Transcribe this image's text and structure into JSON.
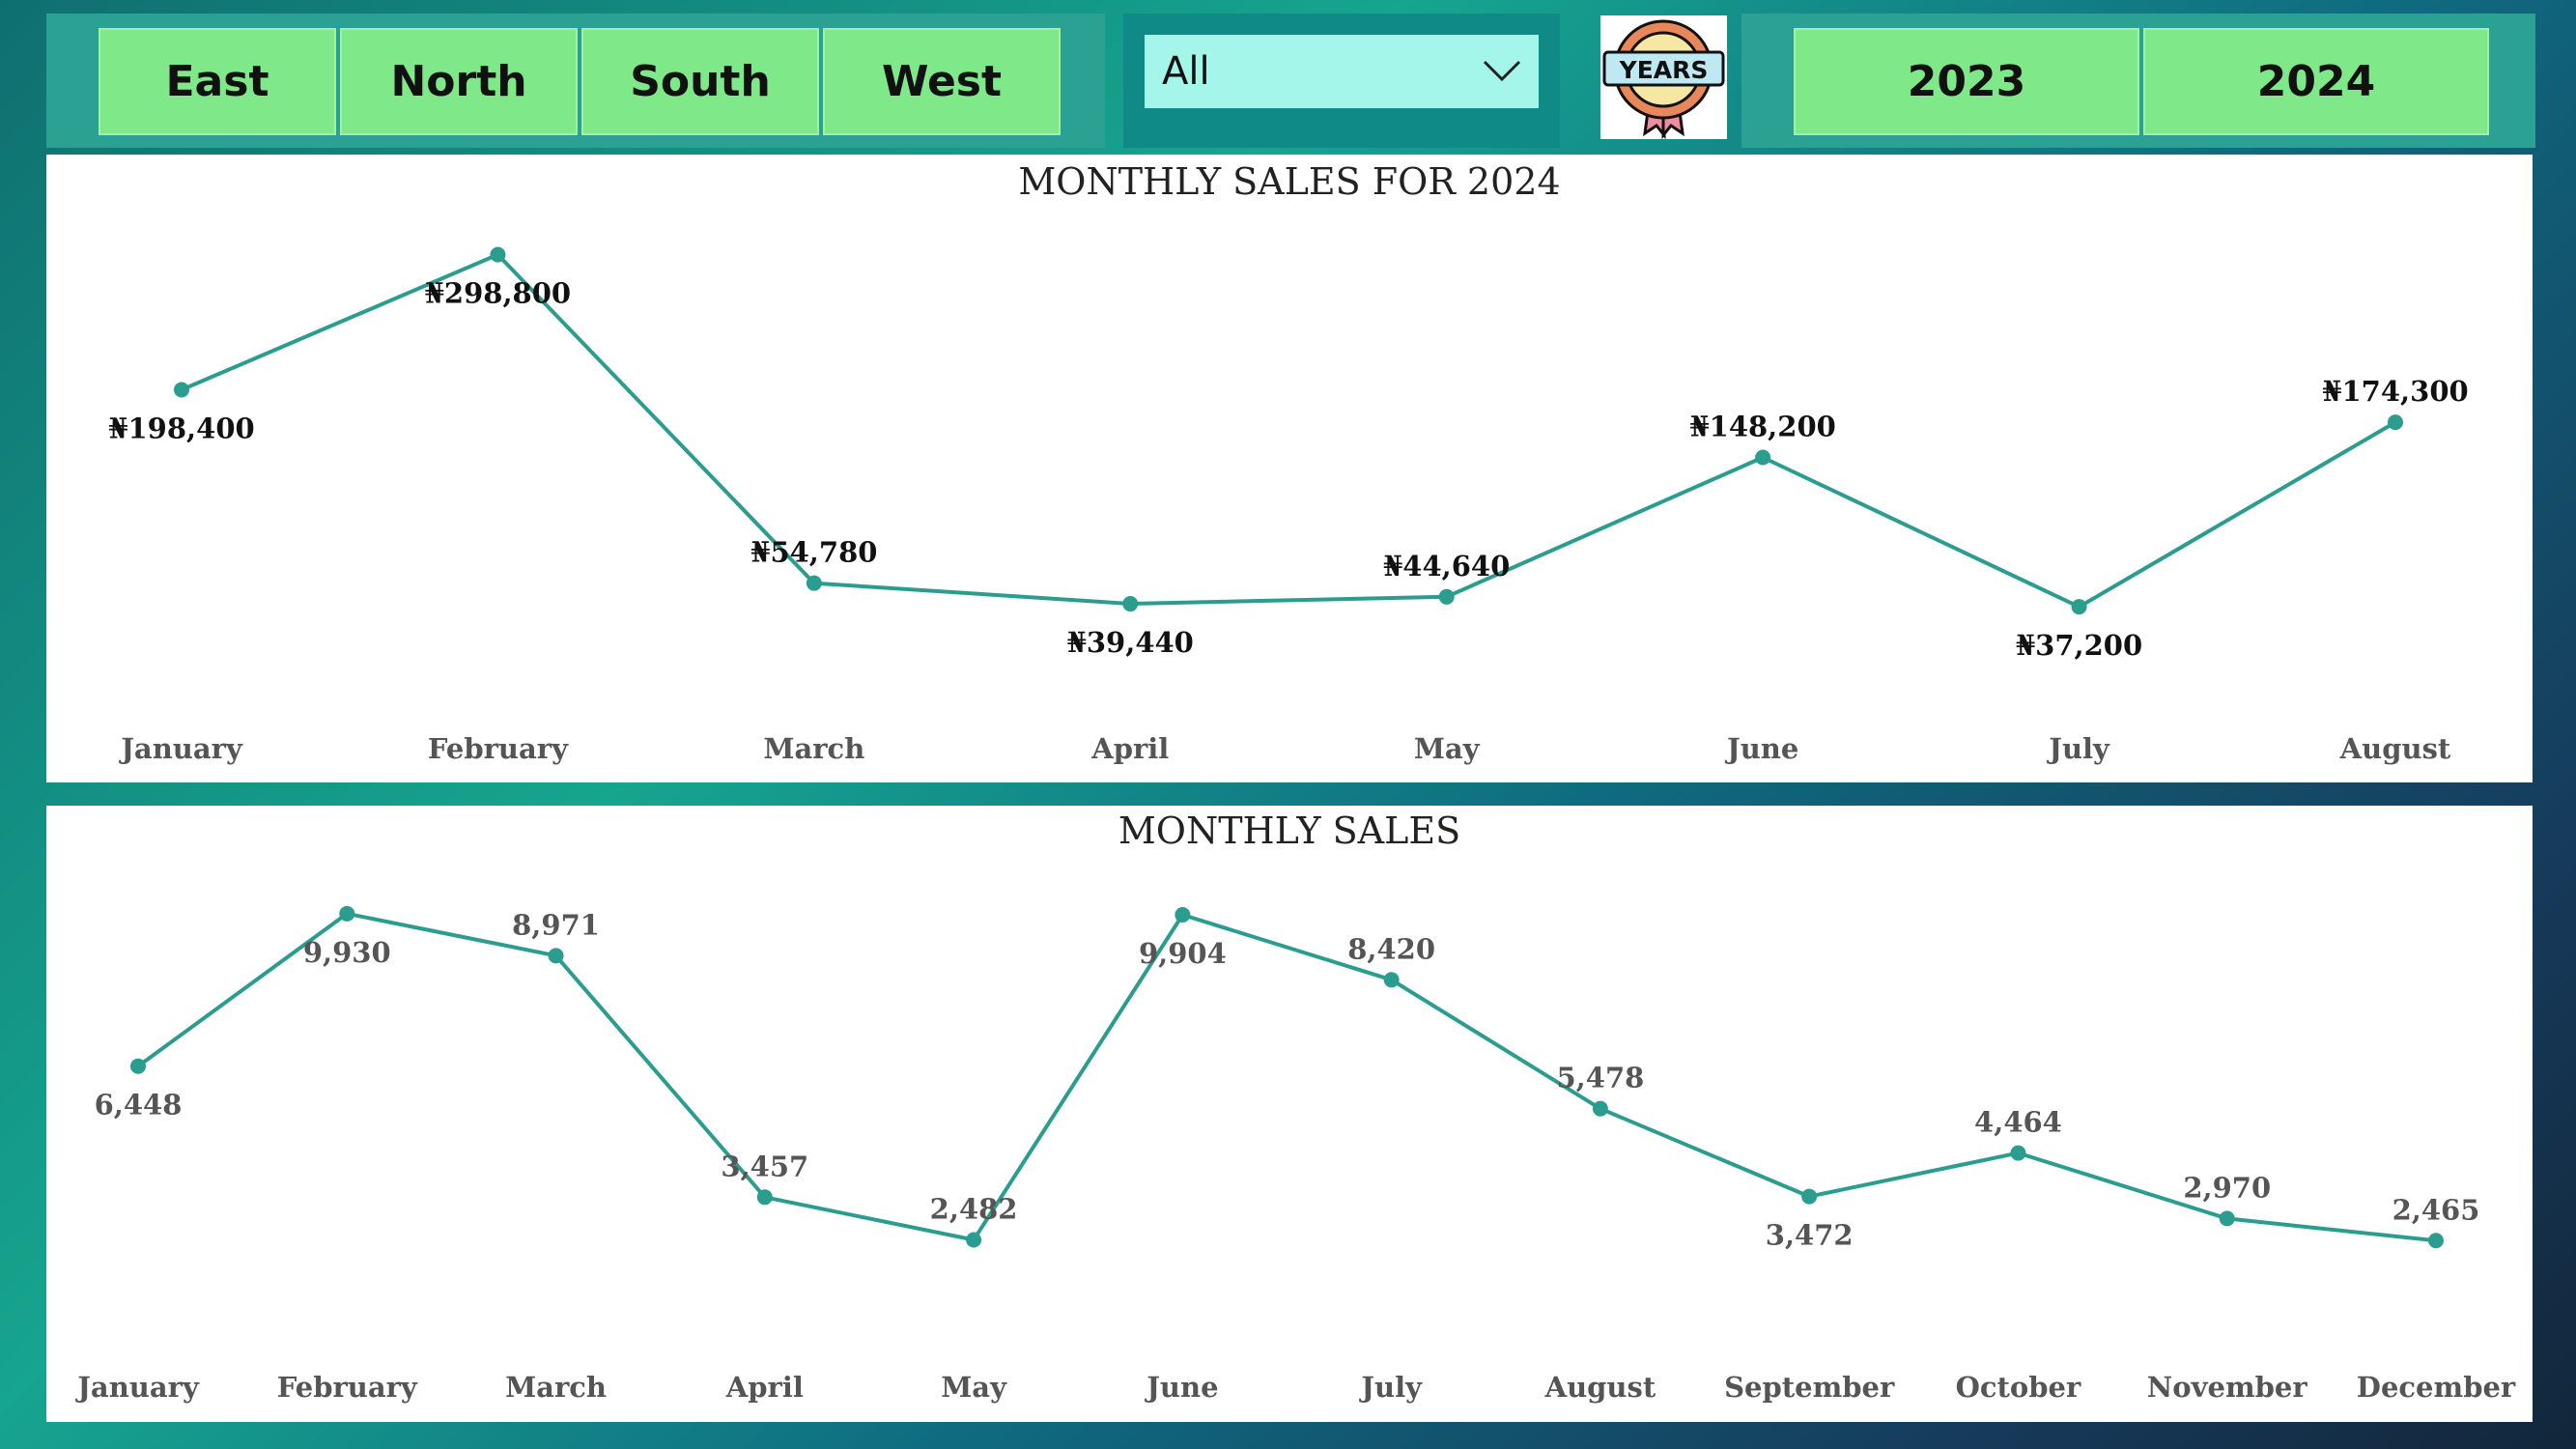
{
  "regions": [
    "East",
    "North",
    "South",
    "West"
  ],
  "filter": {
    "selected": "All"
  },
  "logo": {
    "text": "YEARS"
  },
  "years": [
    "2023",
    "2024"
  ],
  "colors": {
    "line": "#2a9d8f",
    "button": "#7fe888",
    "panel": "#2aa192",
    "dropdown": "#a4f6ea"
  },
  "chart_data": [
    {
      "type": "line",
      "title": "MONTHLY SALES FOR 2024",
      "categories": [
        "January",
        "February",
        "March",
        "April",
        "May",
        "June",
        "July",
        "August"
      ],
      "values": [
        198400,
        298800,
        54780,
        39440,
        44640,
        148200,
        37200,
        174300
      ],
      "value_labels": [
        "₦198,400",
        "₦298,800",
        "₦54,780",
        "₦39,440",
        "₦44,640",
        "₦148,200",
        "₦37,200",
        "₦174,300"
      ],
      "label_pos": [
        "below",
        "below",
        "above",
        "below",
        "above",
        "above",
        "below",
        "above"
      ],
      "ylim": [
        0,
        310000
      ],
      "grid": false
    },
    {
      "type": "line",
      "title": "MONTHLY SALES",
      "categories": [
        "January",
        "February",
        "March",
        "April",
        "May",
        "June",
        "July",
        "August",
        "September",
        "October",
        "November",
        "December"
      ],
      "values": [
        6448,
        9930,
        8971,
        3457,
        2482,
        9904,
        8420,
        5478,
        3472,
        4464,
        2970,
        2465
      ],
      "value_labels": [
        "6,448",
        "9,930",
        "8,971",
        "3,457",
        "2,482",
        "9,904",
        "8,420",
        "5,478",
        "3,472",
        "4,464",
        "2,970",
        "2,465"
      ],
      "label_pos": [
        "below",
        "below",
        "above",
        "above",
        "above",
        "below",
        "above",
        "above",
        "below",
        "above",
        "above",
        "above"
      ],
      "ylim": [
        0,
        10500
      ],
      "grid": false
    }
  ]
}
